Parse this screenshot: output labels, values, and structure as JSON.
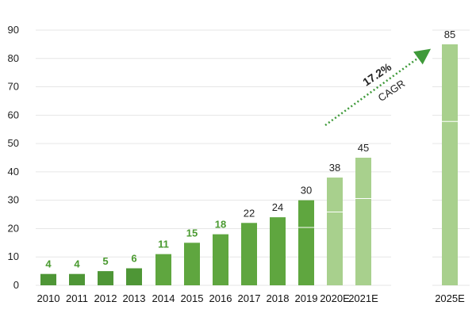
{
  "chart_data": {
    "type": "bar",
    "categories": [
      "2010",
      "2011",
      "2012",
      "2013",
      "2014",
      "2015",
      "2016",
      "2017",
      "2018",
      "2019",
      "2020E",
      "2021E",
      "2025E"
    ],
    "values": [
      4,
      4,
      5,
      6,
      11,
      15,
      18,
      22,
      24,
      30,
      38,
      45,
      85
    ],
    "data_labels": [
      "4",
      "4",
      "5",
      "6",
      "11",
      "15",
      "18",
      "22",
      "24",
      "30",
      "38",
      "45",
      "85"
    ],
    "ylim": [
      0,
      90
    ],
    "yticks": [
      "0",
      "10",
      "20",
      "30",
      "40",
      "50",
      "60",
      "70",
      "80",
      "90"
    ],
    "grid": true,
    "legend": "none",
    "annotation": {
      "value": "17.2%",
      "label": "CAGR",
      "from": "2020E",
      "to": "2025E"
    },
    "colors": {
      "actual": "#5fa63f",
      "early_actual": "#4e9636",
      "forecast": "#a8d08d",
      "label_green": "#4a9a30",
      "label_dark": "#222222",
      "grid": "#e6e6e6",
      "arrow": "#3f9a3a"
    }
  }
}
